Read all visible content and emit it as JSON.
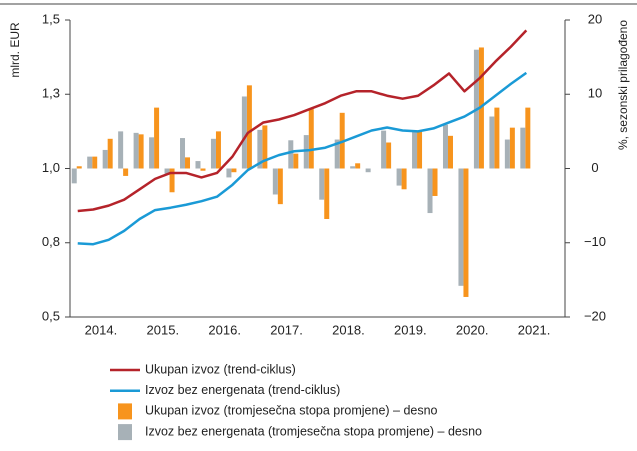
{
  "chart_data": {
    "type": "bar_line",
    "ylabel": "mlrd. EUR",
    "y2label": "%, sezonski prilagođeno",
    "categories": [
      null,
      "2014.",
      null,
      null,
      null,
      "2015.",
      null,
      null,
      null,
      "2016.",
      null,
      null,
      null,
      "2017.",
      null,
      null,
      null,
      "2018.",
      null,
      null,
      null,
      "2019.",
      null,
      null,
      null,
      "2020.",
      null,
      null,
      null,
      "2021."
    ],
    "ylim": [
      0.5,
      1.5
    ],
    "yticks": [
      {
        "value": 0.5,
        "label": "0,5"
      },
      {
        "value": 0.75,
        "label": "0,8"
      },
      {
        "value": 1.0,
        "label": "1,0"
      },
      {
        "value": 1.25,
        "label": "1,3"
      },
      {
        "value": 1.5,
        "label": "1,5"
      }
    ],
    "y2lim": [
      -20,
      20
    ],
    "y2ticks": [
      {
        "value": -20,
        "label": "−20"
      },
      {
        "value": -10,
        "label": "−10"
      },
      0,
      10,
      20
    ],
    "series": [
      {
        "name": "Ukupan izvoz (trend-ciklus)",
        "kind": "line",
        "color": "#b5232a",
        "values": [
          0.857,
          0.862,
          0.875,
          0.895,
          0.93,
          0.965,
          0.985,
          0.985,
          0.97,
          0.985,
          1.04,
          1.12,
          1.155,
          1.165,
          1.18,
          1.2,
          1.22,
          1.245,
          1.26,
          1.26,
          1.245,
          1.235,
          1.245,
          1.28,
          1.32,
          1.26,
          1.305,
          1.36,
          1.41,
          1.465
        ]
      },
      {
        "name": "Izvoz bez energenata (trend-ciklus)",
        "kind": "line",
        "color": "#1a9ad6",
        "values": [
          0.748,
          0.745,
          0.76,
          0.79,
          0.83,
          0.86,
          0.868,
          0.878,
          0.89,
          0.905,
          0.945,
          0.995,
          1.025,
          1.045,
          1.058,
          1.062,
          1.07,
          1.088,
          1.108,
          1.128,
          1.138,
          1.128,
          1.125,
          1.135,
          1.155,
          1.175,
          1.205,
          1.245,
          1.285,
          1.322
        ]
      },
      {
        "name": "Ukupan izvoz (tromjesečna stopa promjene) – desno",
        "kind": "bar",
        "axis": "y2",
        "color": "#f7941d",
        "values": [
          0.3,
          1.6,
          4.0,
          -1.0,
          4.6,
          8.2,
          -3.2,
          1.5,
          -0.3,
          5.0,
          -0.5,
          11.2,
          5.8,
          -4.8,
          2.0,
          8.0,
          -6.8,
          7.5,
          0.7,
          0,
          3.5,
          -2.8,
          5.1,
          -3.7,
          4.4,
          -17.3,
          16.3,
          8.2,
          5.5,
          8.2
        ]
      },
      {
        "name": "Izvoz bez energenata (tromjesečna stopa promjene) – desno",
        "kind": "bar",
        "axis": "y2",
        "color": "#a7b1b7",
        "values": [
          -2.0,
          1.6,
          2.5,
          5.0,
          4.8,
          4.2,
          -0.7,
          4.1,
          1.0,
          4.0,
          -1.2,
          9.7,
          5.2,
          -3.5,
          3.8,
          4.5,
          -4.2,
          3.9,
          0.3,
          -0.5,
          5.1,
          -2.3,
          5.0,
          -6.0,
          5.9,
          -15.8,
          16.0,
          7.0,
          3.9,
          5.5
        ]
      }
    ]
  }
}
